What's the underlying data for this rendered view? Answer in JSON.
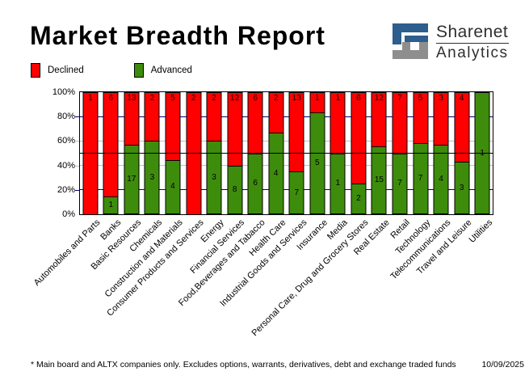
{
  "title": "Market Breadth Report",
  "logo": {
    "name": "Sharenet",
    "sub": "Analytics",
    "blue": "#2D5E8D",
    "gray": "#8E8E8E"
  },
  "legend": [
    {
      "label": "Declined",
      "color": "#FF0000"
    },
    {
      "label": "Advanced",
      "color": "#3E8C0C"
    }
  ],
  "footer": {
    "note": "* Main board and ALTX companies only. Excludes options, warrants, derivatives, debt and exchange traded funds",
    "date": "10/09/2025"
  },
  "chart_data": {
    "type": "bar",
    "stacked": "percent",
    "title": "Market Breadth Report",
    "categories": [
      "Automobiles and Parts",
      "Banks",
      "Basic Resources",
      "Chemicals",
      "Construction and Materials",
      "Consumer Products and Services",
      "Energy",
      "Financial Services",
      "Food,Beverages and Tabacco",
      "Health Care",
      "Industrial Goods and Services",
      "Insurance",
      "Media",
      "Personal Care, Drug and Grocery Stores",
      "Real Estate",
      "Retail",
      "Technology",
      "Telecommunications",
      "Travel and Leisure",
      "Utilities"
    ],
    "series": [
      {
        "name": "Declined",
        "color": "#FF0000",
        "values": [
          1,
          6,
          13,
          2,
          5,
          2,
          2,
          12,
          6,
          2,
          13,
          1,
          1,
          6,
          12,
          7,
          5,
          3,
          4,
          0
        ]
      },
      {
        "name": "Advanced",
        "color": "#3E8C0C",
        "values": [
          0,
          1,
          17,
          3,
          4,
          0,
          3,
          8,
          6,
          4,
          7,
          5,
          1,
          2,
          15,
          7,
          7,
          4,
          3,
          1
        ]
      }
    ],
    "yticks": [
      "100%",
      "80%",
      "60%",
      "40%",
      "20%",
      "0%"
    ],
    "ylim": [
      0,
      100
    ],
    "gridlines": [
      {
        "pct": 80,
        "color": "#000080"
      },
      {
        "pct": 60,
        "color": "#C0C0C0"
      },
      {
        "pct": 50,
        "color": "#000000",
        "over_bars": true
      },
      {
        "pct": 40,
        "color": "#C0C0C0"
      },
      {
        "pct": 20,
        "color": "#000080"
      }
    ],
    "legend_position": "top-left",
    "grid": true
  }
}
